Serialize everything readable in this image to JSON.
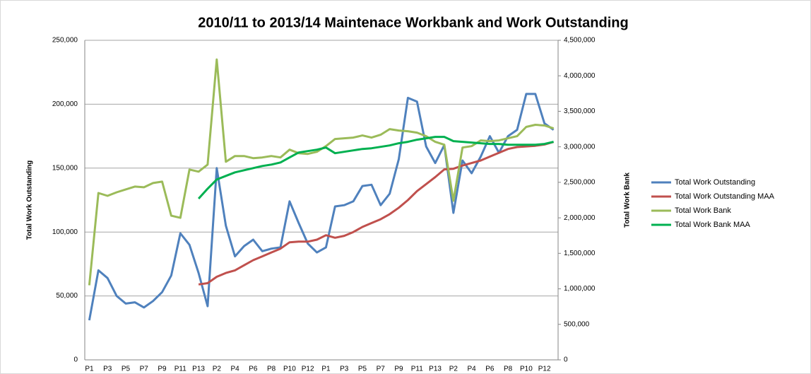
{
  "chart_data": {
    "type": "line",
    "title": "2010/11 to 2013/14 Maintenace Workbank and Work Outstanding",
    "ylabel": "Total Work Outstanding",
    "y2label": "Total Work Bank",
    "categories": [
      "P1",
      null,
      "P3",
      null,
      "P5",
      null,
      "P7",
      null,
      "P9",
      null,
      "P11",
      null,
      "P13",
      null,
      "P2",
      null,
      "P4",
      null,
      "P6",
      null,
      "P8",
      null,
      "P10",
      null,
      "P12",
      null,
      "P1",
      null,
      "P3",
      null,
      "P5",
      null,
      "P7",
      null,
      "P9",
      null,
      "P11",
      null,
      "P13",
      null,
      "P2",
      null,
      "P4",
      null,
      "P6",
      null,
      "P8",
      null,
      "P10",
      null,
      "P12",
      null
    ],
    "ylim": [
      0,
      250000
    ],
    "yticks": [
      0,
      {
        "value": 50000,
        "label": "50,000"
      },
      {
        "value": 100000,
        "label": "100,000"
      },
      {
        "value": 150000,
        "label": "150,000"
      },
      {
        "value": 200000,
        "label": "200,000"
      },
      {
        "value": 250000,
        "label": "250,000"
      }
    ],
    "y2lim": [
      0,
      4500000
    ],
    "y2ticks": [
      0,
      {
        "value": 500000,
        "label": "500,000"
      },
      {
        "value": 1000000,
        "label": "1,000,000"
      },
      {
        "value": 1500000,
        "label": "1,500,000"
      },
      {
        "value": 2000000,
        "label": "2,000,000"
      },
      {
        "value": 2500000,
        "label": "2,500,000"
      },
      {
        "value": 3000000,
        "label": "3,000,000"
      },
      {
        "value": 3500000,
        "label": "3,500,000"
      },
      {
        "value": 4000000,
        "label": "4,000,000"
      },
      {
        "value": 4500000,
        "label": "4,500,000"
      }
    ],
    "grid": true,
    "legend": "right",
    "series": [
      {
        "name": "Total Work Outstanding",
        "color": "#4f81bd",
        "axis": "y",
        "values": [
          31000,
          70000,
          64000,
          50000,
          44000,
          45000,
          41000,
          46000,
          53000,
          66000,
          99000,
          90000,
          68000,
          42000,
          150000,
          105000,
          81000,
          89000,
          94000,
          85000,
          87000,
          88000,
          124000,
          107000,
          91000,
          84000,
          88000,
          120000,
          121000,
          124000,
          136000,
          137000,
          121000,
          130000,
          157000,
          205000,
          202000,
          167000,
          154000,
          168000,
          115000,
          156000,
          146000,
          159000,
          175000,
          162000,
          175000,
          180000,
          208000,
          208000,
          185000,
          180000
        ]
      },
      {
        "name": "Total Work Outstanding MAA",
        "color": "#c0504d",
        "axis": "y",
        "values": [
          null,
          null,
          null,
          null,
          null,
          null,
          null,
          null,
          null,
          null,
          null,
          null,
          59000,
          60000,
          65000,
          68000,
          70000,
          74000,
          78000,
          81000,
          84000,
          87000,
          92000,
          92500,
          92500,
          94000,
          97500,
          95500,
          97000,
          100000,
          104000,
          107000,
          110000,
          114000,
          119000,
          125000,
          132000,
          137500,
          143000,
          149000,
          149500,
          152000,
          154000,
          156000,
          159000,
          162000,
          165000,
          166500,
          167000,
          167500,
          168500,
          170500
        ]
      },
      {
        "name": "Total Work Bank",
        "color": "#9bbb59",
        "axis": "y2",
        "values": [
          1050000,
          2350000,
          2310000,
          2360000,
          2400000,
          2440000,
          2430000,
          2490000,
          2510000,
          2030000,
          2000000,
          2680000,
          2650000,
          2750000,
          4230000,
          2790000,
          2870000,
          2870000,
          2840000,
          2850000,
          2870000,
          2850000,
          2960000,
          2910000,
          2900000,
          2930000,
          3010000,
          3110000,
          3120000,
          3130000,
          3160000,
          3130000,
          3170000,
          3250000,
          3230000,
          3220000,
          3200000,
          3150000,
          3070000,
          3030000,
          2240000,
          2990000,
          3010000,
          3090000,
          3080000,
          3090000,
          3120000,
          3150000,
          3280000,
          3310000,
          3300000,
          3260000
        ]
      },
      {
        "name": "Total Work Bank MAA",
        "color": "#00b050",
        "axis": "y2",
        "values": [
          null,
          null,
          null,
          null,
          null,
          null,
          null,
          null,
          null,
          null,
          null,
          null,
          2270000,
          2410000,
          2540000,
          2590000,
          2640000,
          2670000,
          2700000,
          2730000,
          2750000,
          2780000,
          2850000,
          2920000,
          2940000,
          2960000,
          2990000,
          2910000,
          2930000,
          2950000,
          2970000,
          2980000,
          3000000,
          3020000,
          3050000,
          3070000,
          3100000,
          3120000,
          3140000,
          3140000,
          3080000,
          3070000,
          3060000,
          3050000,
          3040000,
          3040000,
          3030000,
          3030000,
          3030000,
          3030000,
          3040000,
          3070000
        ]
      }
    ]
  }
}
